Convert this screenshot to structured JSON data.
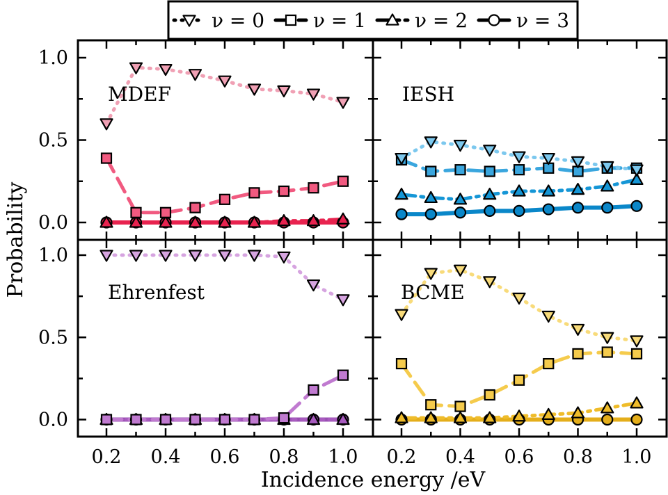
{
  "chart_data": {
    "type": "line",
    "xlabel": "Incidence energy /eV",
    "ylabel": "Probability",
    "x_ticks": [
      "0.2",
      "0.4",
      "0.6",
      "0.8",
      "1.0"
    ],
    "y_ticks": [
      "0.0",
      "0.5",
      "1.0"
    ],
    "xlim": [
      0.1,
      1.1
    ],
    "ylim": [
      -0.1,
      1.07
    ],
    "grid": false,
    "legend": {
      "placement": "top-center",
      "entries": [
        {
          "label": "ν = 0",
          "marker": "triangle-down",
          "dash": "dotted"
        },
        {
          "label": "ν = 1",
          "marker": "square",
          "dash": "dashed"
        },
        {
          "label": "ν = 2",
          "marker": "triangle-up",
          "dash": "dash-dot"
        },
        {
          "label": "ν = 3",
          "marker": "circle",
          "dash": "solid"
        }
      ]
    },
    "x": [
      0.2,
      0.3,
      0.4,
      0.5,
      0.6,
      0.7,
      0.8,
      0.9,
      1.0
    ],
    "panels": [
      {
        "label": "MDEF",
        "colors": {
          "v0": "#f0a0b4",
          "v1": "#f15a80",
          "v2": "#e8234f",
          "v3": "#e8234f"
        },
        "series": [
          {
            "level": 0,
            "values": [
              0.6,
              0.94,
              0.93,
              0.9,
              0.86,
              0.81,
              0.8,
              0.78,
              0.73
            ]
          },
          {
            "level": 1,
            "values": [
              0.39,
              0.06,
              0.06,
              0.09,
              0.14,
              0.18,
              0.19,
              0.21,
              0.25
            ]
          },
          {
            "level": 2,
            "values": [
              0.0,
              0.0,
              0.0,
              0.0,
              0.0,
              0.0,
              0.01,
              0.01,
              0.02
            ]
          },
          {
            "level": 3,
            "values": [
              0.0,
              0.0,
              0.0,
              0.0,
              0.0,
              0.0,
              0.0,
              0.0,
              0.0
            ]
          }
        ]
      },
      {
        "label": "IESH",
        "colors": {
          "v0": "#7cc8ee",
          "v1": "#3aa6de",
          "v2": "#1596d6",
          "v3": "#0a87c9"
        },
        "series": [
          {
            "level": 0,
            "values": [
              0.39,
              0.49,
              0.47,
              0.44,
              0.4,
              0.39,
              0.37,
              0.34,
              0.32
            ]
          },
          {
            "level": 1,
            "values": [
              0.38,
              0.31,
              0.32,
              0.31,
              0.32,
              0.33,
              0.31,
              0.33,
              0.33
            ]
          },
          {
            "level": 2,
            "values": [
              0.17,
              0.15,
              0.14,
              0.17,
              0.19,
              0.19,
              0.2,
              0.22,
              0.26
            ]
          },
          {
            "level": 3,
            "values": [
              0.05,
              0.05,
              0.06,
              0.07,
              0.07,
              0.08,
              0.09,
              0.09,
              0.1
            ]
          }
        ]
      },
      {
        "label": "Ehrenfest",
        "colors": {
          "v0": "#d6a4e0",
          "v1": "#c07ad0",
          "v2": "#a85bbf",
          "v3": "#9a4fb3"
        },
        "series": [
          {
            "level": 0,
            "values": [
              1.0,
              1.0,
              1.0,
              1.0,
              1.0,
              1.0,
              0.99,
              0.82,
              0.73
            ]
          },
          {
            "level": 1,
            "values": [
              0.0,
              0.0,
              0.0,
              0.0,
              0.0,
              0.0,
              0.01,
              0.18,
              0.27
            ]
          },
          {
            "level": 2,
            "values": [
              0.0,
              0.0,
              0.0,
              0.0,
              0.0,
              0.0,
              0.0,
              0.0,
              0.0
            ]
          },
          {
            "level": 3,
            "values": [
              0.0,
              0.0,
              0.0,
              0.0,
              0.0,
              0.0,
              0.0,
              0.0,
              0.0
            ]
          }
        ]
      },
      {
        "label": "BCME",
        "colors": {
          "v0": "#f8db7a",
          "v1": "#f5cb4c",
          "v2": "#efbc2a",
          "v3": "#e4ae1a"
        },
        "series": [
          {
            "level": 0,
            "values": [
              0.64,
              0.89,
              0.91,
              0.84,
              0.74,
              0.63,
              0.55,
              0.5,
              0.48
            ]
          },
          {
            "level": 1,
            "values": [
              0.34,
              0.09,
              0.08,
              0.15,
              0.24,
              0.34,
              0.4,
              0.41,
              0.4
            ]
          },
          {
            "level": 2,
            "values": [
              0.01,
              0.01,
              0.01,
              0.01,
              0.02,
              0.03,
              0.04,
              0.07,
              0.1
            ]
          },
          {
            "level": 3,
            "values": [
              0.0,
              0.0,
              0.0,
              0.0,
              0.0,
              0.0,
              0.0,
              0.0,
              0.0
            ]
          }
        ]
      }
    ]
  }
}
